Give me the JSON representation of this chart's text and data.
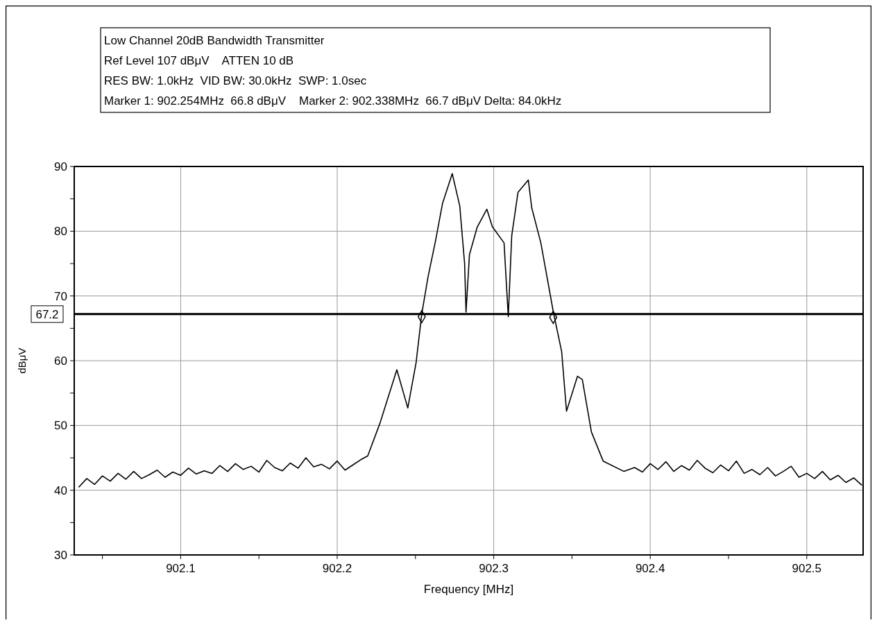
{
  "chart_data": {
    "type": "line",
    "title": "Low Channel 20dB Bandwidth Transmitter",
    "annotations": [
      "Ref Level 107 dBμV    ATTEN 10 dB",
      "RES BW: 1.0kHz  VID BW: 30.0kHz  SWP: 1.0sec",
      "Marker 1: 902.254MHz  66.8 dBμV    Marker 2: 902.338MHz  66.7 dBμV Delta: 84.0kHz"
    ],
    "xlabel": "Frequency [MHz]",
    "ylabel": "dBμV",
    "xlim": [
      902.032,
      902.536
    ],
    "ylim": [
      30,
      90
    ],
    "xticks": [
      {
        "value": 902.05,
        "label": null
      },
      902.1,
      {
        "value": 902.15,
        "label": null
      },
      902.2,
      {
        "value": 902.25,
        "label": null
      },
      902.3,
      {
        "value": 902.35,
        "label": null
      },
      902.4,
      {
        "value": 902.45,
        "label": null
      },
      902.5
    ],
    "yticks": [
      30,
      {
        "value": 35,
        "label": null
      },
      40,
      {
        "value": 45,
        "label": null
      },
      50,
      {
        "value": 55,
        "label": null
      },
      60,
      {
        "value": 65,
        "label": null
      },
      70,
      {
        "value": 75,
        "label": null
      },
      80,
      {
        "value": 85,
        "label": null
      },
      90
    ],
    "grid": true,
    "ref_lines": [
      {
        "axis": "y",
        "value": 67.2,
        "label": "67.2",
        "color": "#000000"
      }
    ],
    "series": [
      {
        "color": "#000000",
        "x": [
          902.035,
          902.04,
          902.045,
          902.05,
          902.055,
          902.06,
          902.065,
          902.07,
          902.075,
          902.08,
          902.085,
          902.09,
          902.095,
          902.1,
          902.105,
          902.11,
          902.115,
          902.12,
          902.125,
          902.13,
          902.135,
          902.14,
          902.145,
          902.15,
          902.155,
          902.16,
          902.165,
          902.17,
          902.175,
          902.18,
          902.185,
          902.19,
          902.195,
          902.2,
          902.205,
          902.21,
          902.215,
          902.2195,
          902.2274,
          902.2381,
          902.2451,
          902.2504,
          902.254,
          902.258,
          902.2628,
          902.2673,
          902.2735,
          902.2783,
          902.2814,
          902.2823,
          902.2845,
          902.2894,
          902.2956,
          902.2991,
          902.3066,
          902.3093,
          902.3115,
          902.3155,
          902.3221,
          902.3243,
          902.3301,
          902.3381,
          902.3434,
          902.3465,
          902.3535,
          902.3566,
          902.3624,
          902.3699,
          902.3832,
          902.39,
          902.395,
          902.4,
          902.405,
          902.41,
          902.415,
          902.42,
          902.425,
          902.43,
          902.435,
          902.44,
          902.445,
          902.45,
          902.455,
          902.46,
          902.465,
          902.47,
          902.475,
          902.48,
          902.485,
          902.49,
          902.495,
          902.5,
          902.505,
          902.51,
          902.515,
          902.52,
          902.525,
          902.53,
          902.535
        ],
        "values": [
          40.5,
          41.8,
          40.9,
          42.2,
          41.4,
          42.6,
          41.7,
          42.9,
          41.8,
          42.4,
          43.1,
          42.0,
          42.8,
          42.3,
          43.4,
          42.5,
          43.0,
          42.6,
          43.8,
          42.9,
          44.1,
          43.2,
          43.7,
          42.8,
          44.6,
          43.5,
          43.0,
          44.2,
          43.4,
          45.0,
          43.6,
          44.0,
          43.3,
          44.5,
          43.1,
          43.9,
          44.7,
          45.3,
          50.4,
          58.6,
          52.7,
          59.7,
          67.2,
          72.9,
          78.5,
          84.3,
          88.9,
          83.9,
          75.0,
          67.5,
          76.4,
          80.6,
          83.4,
          80.7,
          78.2,
          66.8,
          79.3,
          86.0,
          87.9,
          83.6,
          78.2,
          67.5,
          61.4,
          52.2,
          57.6,
          57.1,
          49.0,
          44.5,
          42.9,
          43.5,
          42.8,
          44.1,
          43.2,
          44.4,
          42.9,
          43.8,
          43.1,
          44.6,
          43.4,
          42.7,
          43.9,
          43.0,
          44.5,
          42.6,
          43.2,
          42.4,
          43.5,
          42.2,
          42.9,
          43.7,
          42.0,
          42.6,
          41.8,
          42.9,
          41.6,
          42.3,
          41.2,
          41.9,
          40.8
        ]
      },
      {
        "type": "scatter",
        "marker": "diamond",
        "color": "#000000",
        "x": [
          902.254,
          902.338
        ],
        "values": [
          66.8,
          66.7
        ]
      }
    ]
  }
}
